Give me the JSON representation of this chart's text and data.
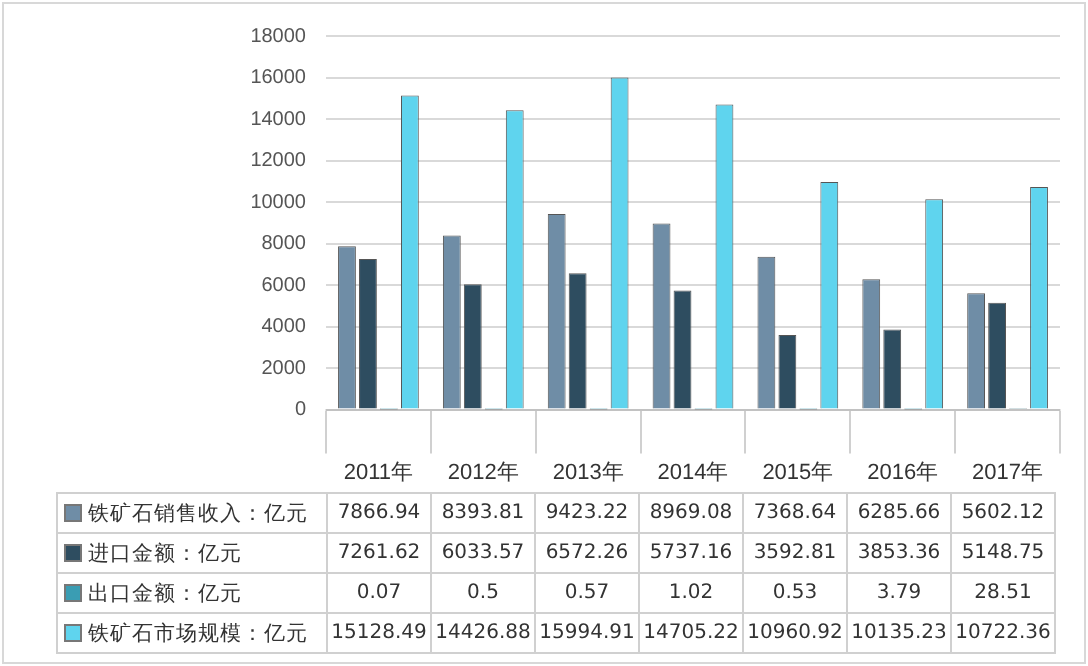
{
  "chart_data": {
    "type": "bar",
    "categories": [
      "2011年",
      "2012年",
      "2013年",
      "2014年",
      "2015年",
      "2016年",
      "2017年"
    ],
    "series": [
      {
        "name": "铁矿石销售收入：亿元",
        "color": "#6f8da6",
        "values": [
          7866.94,
          8393.81,
          9423.22,
          8969.08,
          7368.64,
          6285.66,
          5602.12
        ]
      },
      {
        "name": "进口金额：亿元",
        "color": "#2e4d60",
        "values": [
          7261.62,
          6033.57,
          6572.26,
          5737.16,
          3592.81,
          3853.36,
          5148.75
        ]
      },
      {
        "name": "出口金额：亿元",
        "color": "#3a9db3",
        "values": [
          0.07,
          0.5,
          0.57,
          1.02,
          0.53,
          3.79,
          28.51
        ]
      },
      {
        "name": "铁矿石市场规模：亿元",
        "color": "#5fd4ee",
        "values": [
          15128.49,
          14426.88,
          15994.91,
          14705.22,
          10960.92,
          10135.23,
          10722.36
        ]
      }
    ],
    "ylim": [
      0,
      18000
    ],
    "yticks": [
      0,
      2000,
      4000,
      6000,
      8000,
      10000,
      12000,
      14000,
      16000,
      18000
    ],
    "grid": "y",
    "legend": "bottom",
    "data_labels": true
  }
}
